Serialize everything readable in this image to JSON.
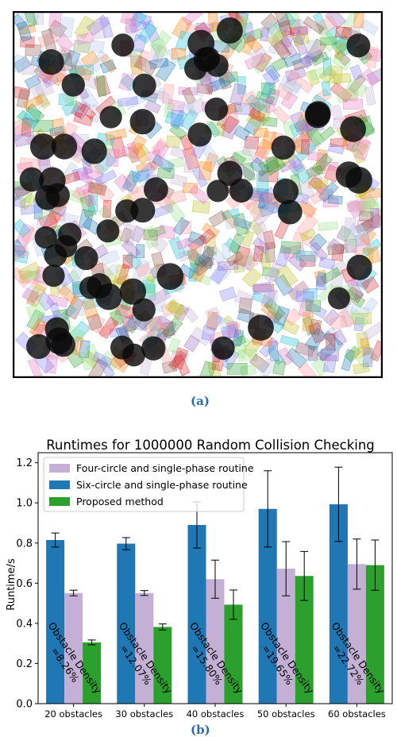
{
  "panel_a": {
    "caption": "(a)"
  },
  "panel_b": {
    "caption": "(b)"
  },
  "chart_data": {
    "type": "bar",
    "title": "Runtimes for 1000000 Random Collision Checking",
    "xlabel": "",
    "ylabel": "Runtime/s",
    "ylim": [
      0.0,
      1.25
    ],
    "yticks": [
      "0.0",
      "0.2",
      "0.4",
      "0.6",
      "0.8",
      "1.0",
      "1.2"
    ],
    "categories": [
      "20 obstacles",
      "30 obstacles",
      "40 obstacles",
      "50 obstacles",
      "60 obstacles"
    ],
    "legend_position": "top-left",
    "series": [
      {
        "name": "Six-circle and single-phase routine",
        "color": "#1f77b4",
        "values": [
          0.815,
          0.797,
          0.89,
          0.97,
          0.993
        ],
        "errors": [
          0.035,
          0.03,
          0.115,
          0.19,
          0.185
        ]
      },
      {
        "name": "Four-circle and single-phase routine",
        "color": "#c5b0d5",
        "values": [
          0.551,
          0.551,
          0.62,
          0.672,
          0.695
        ],
        "errors": [
          0.014,
          0.012,
          0.095,
          0.135,
          0.125
        ]
      },
      {
        "name": "Proposed method",
        "color": "#2ca02c",
        "values": [
          0.305,
          0.382,
          0.493,
          0.636,
          0.69
        ],
        "errors": [
          0.012,
          0.015,
          0.073,
          0.122,
          0.125
        ]
      }
    ],
    "legend_order": [
      "Four-circle and single-phase routine",
      "Six-circle and single-phase routine",
      "Proposed method"
    ],
    "annotations": [
      {
        "line1": "Obstacle Density",
        "line2": "=8.26%"
      },
      {
        "line1": "Obstacle Density",
        "line2": "=12.07%"
      },
      {
        "line1": "Obstacle Density",
        "line2": "=15.80%"
      },
      {
        "line1": "Obstacle Density",
        "line2": "=19.65%"
      },
      {
        "line1": "Obstacle Density",
        "line2": "=22.72%"
      }
    ]
  }
}
